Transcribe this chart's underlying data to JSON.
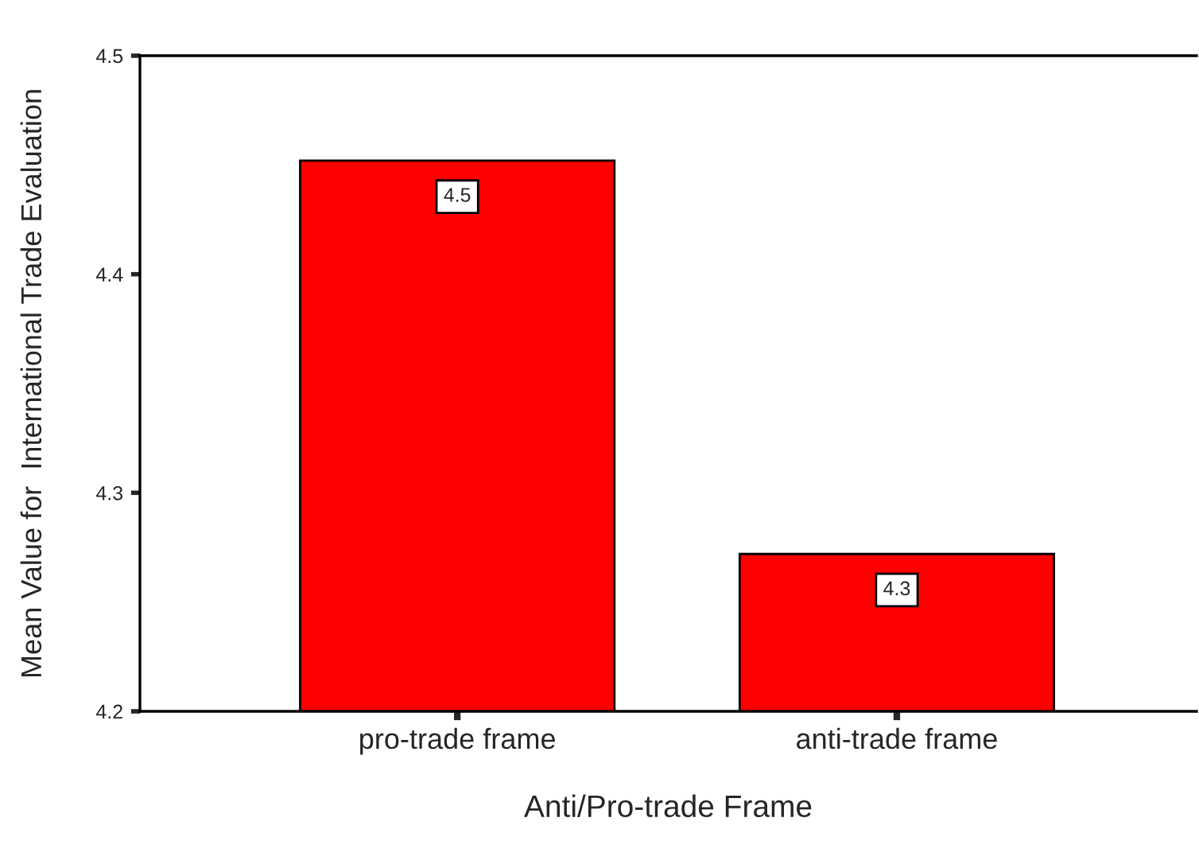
{
  "chart_data": {
    "type": "bar",
    "xlabel": "Anti/Pro-trade Frame",
    "ylabel": "Mean Value for  International Trade Evaluation",
    "categories": [
      "pro-trade frame",
      "anti-trade frame"
    ],
    "values": [
      4.452,
      4.272
    ],
    "color": "#ff0000",
    "value_labels": [
      "4.5",
      "4.3"
    ],
    "ylim": [
      4.2,
      4.5
    ],
    "yticks": [
      4.2,
      4.3,
      4.4,
      4.5
    ],
    "grid": false,
    "legend": false
  }
}
